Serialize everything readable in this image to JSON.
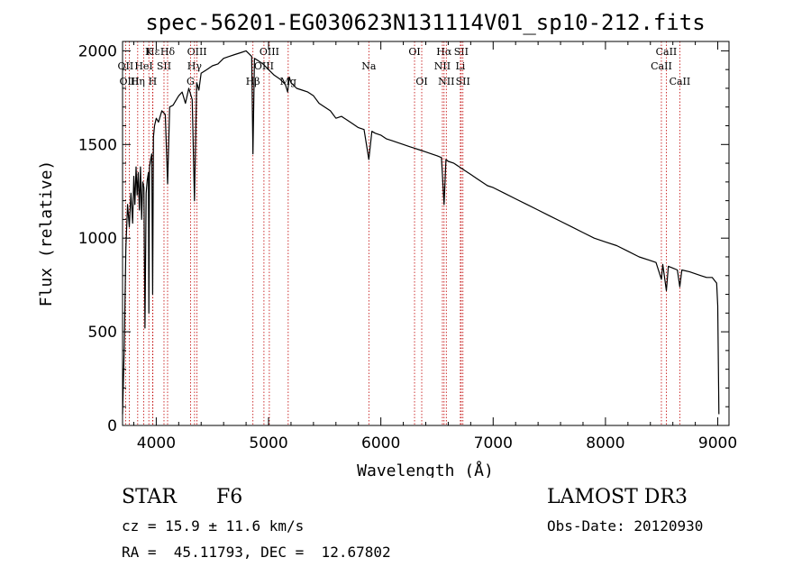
{
  "chart_data": {
    "type": "line",
    "title": "spec-56201-EG030623N131114V01_sp10-212.fits",
    "xlabel": "Wavelength (Å)",
    "ylabel": "Flux (relative)",
    "xlim": [
      3700,
      9100
    ],
    "ylim": [
      0,
      2050
    ],
    "x_ticks": [
      4000,
      5000,
      6000,
      7000,
      8000,
      9000
    ],
    "y_ticks": [
      0,
      500,
      1000,
      1500,
      2000
    ],
    "grid": false,
    "series": [
      {
        "name": "flux",
        "x": [
          3700,
          3715,
          3730,
          3745,
          3760,
          3775,
          3790,
          3800,
          3810,
          3820,
          3830,
          3840,
          3850,
          3860,
          3870,
          3880,
          3890,
          3900,
          3910,
          3920,
          3930,
          3934,
          3940,
          3950,
          3960,
          3968,
          3975,
          3985,
          4000,
          4020,
          4050,
          4080,
          4101,
          4120,
          4150,
          4180,
          4200,
          4230,
          4260,
          4290,
          4320,
          4340,
          4360,
          4380,
          4400,
          4450,
          4500,
          4550,
          4600,
          4650,
          4700,
          4750,
          4800,
          4850,
          4861,
          4875,
          4900,
          4950,
          5000,
          5050,
          5100,
          5150,
          5170,
          5185,
          5200,
          5250,
          5300,
          5350,
          5400,
          5450,
          5500,
          5550,
          5600,
          5650,
          5700,
          5750,
          5800,
          5850,
          5893,
          5920,
          5950,
          6000,
          6050,
          6100,
          6150,
          6200,
          6250,
          6300,
          6350,
          6400,
          6450,
          6500,
          6540,
          6563,
          6580,
          6600,
          6650,
          6700,
          6750,
          6800,
          6850,
          6900,
          6950,
          7000,
          7100,
          7200,
          7300,
          7400,
          7500,
          7600,
          7700,
          7800,
          7900,
          8000,
          8100,
          8200,
          8300,
          8400,
          8450,
          8498,
          8510,
          8542,
          8560,
          8600,
          8640,
          8662,
          8680,
          8750,
          8800,
          8850,
          8900,
          8950,
          8990,
          9000,
          9010
        ],
        "y": [
          60,
          420,
          950,
          1180,
          1060,
          1240,
          1080,
          1330,
          1180,
          1380,
          1230,
          1350,
          1150,
          1380,
          1100,
          1300,
          1270,
          520,
          1240,
          1310,
          1350,
          600,
          1380,
          1420,
          1450,
          700,
          1540,
          1600,
          1640,
          1620,
          1680,
          1660,
          1290,
          1700,
          1710,
          1740,
          1760,
          1780,
          1720,
          1800,
          1740,
          1200,
          1830,
          1790,
          1880,
          1900,
          1920,
          1930,
          1960,
          1970,
          1980,
          1990,
          2000,
          1970,
          1450,
          1960,
          1950,
          1930,
          1900,
          1870,
          1850,
          1820,
          1780,
          1860,
          1830,
          1800,
          1790,
          1780,
          1760,
          1720,
          1700,
          1680,
          1640,
          1650,
          1630,
          1610,
          1590,
          1580,
          1420,
          1570,
          1560,
          1550,
          1530,
          1520,
          1510,
          1500,
          1490,
          1480,
          1470,
          1460,
          1450,
          1440,
          1430,
          1180,
          1420,
          1410,
          1400,
          1380,
          1360,
          1340,
          1320,
          1300,
          1280,
          1270,
          1240,
          1210,
          1180,
          1150,
          1120,
          1090,
          1060,
          1030,
          1000,
          980,
          960,
          930,
          900,
          880,
          870,
          780,
          860,
          720,
          850,
          840,
          830,
          740,
          830,
          820,
          810,
          800,
          790,
          790,
          760,
          640,
          60
        ]
      }
    ],
    "lines": [
      {
        "name": "Hε",
        "w": 3970,
        "row": 1
      },
      {
        "name": "OII",
        "w": 3727,
        "row": 2
      },
      {
        "name": "HeI",
        "w": 3889,
        "row": 2
      },
      {
        "name": "K",
        "w": 3934,
        "row": 1
      },
      {
        "name": "SII",
        "w": 4069,
        "row": 2
      },
      {
        "name": "OIII",
        "w": 3760,
        "row": 3
      },
      {
        "name": "Hη",
        "w": 3835,
        "row": 3
      },
      {
        "name": "H",
        "w": 3968,
        "row": 3
      },
      {
        "name": "Hδ",
        "w": 4101,
        "row": 1
      },
      {
        "name": "OIII",
        "w": 4363,
        "row": 1
      },
      {
        "name": "Hγ",
        "w": 4341,
        "row": 2
      },
      {
        "name": "G",
        "w": 4305,
        "row": 3
      },
      {
        "name": "OIII",
        "w": 5007,
        "row": 1
      },
      {
        "name": "OIII",
        "w": 4959,
        "row": 2
      },
      {
        "name": "Hβ",
        "w": 4861,
        "row": 3
      },
      {
        "name": "Mg",
        "w": 5175,
        "row": 3
      },
      {
        "name": "Na",
        "w": 5893,
        "row": 2
      },
      {
        "name": "OI",
        "w": 6300,
        "row": 1
      },
      {
        "name": "OI",
        "w": 6364,
        "row": 3
      },
      {
        "name": "Hα",
        "w": 6563,
        "row": 1
      },
      {
        "name": "SII",
        "w": 6716,
        "row": 1
      },
      {
        "name": "NII",
        "w": 6548,
        "row": 2
      },
      {
        "name": "Li",
        "w": 6708,
        "row": 2
      },
      {
        "name": "NII",
        "w": 6583,
        "row": 3
      },
      {
        "name": "SII",
        "w": 6731,
        "row": 3
      },
      {
        "name": "CaII",
        "w": 8542,
        "row": 1
      },
      {
        "name": "CaII",
        "w": 8498,
        "row": 2
      },
      {
        "name": "CaII",
        "w": 8662,
        "row": 3
      }
    ]
  },
  "info": {
    "class_label": "STAR",
    "subclass": "F6",
    "survey": "LAMOST DR3",
    "cz": "cz = 15.9 ± 11.6 km/s",
    "obs_date": "Obs-Date: 20120930",
    "radec": "RA =  45.11793, DEC =  12.67802"
  }
}
